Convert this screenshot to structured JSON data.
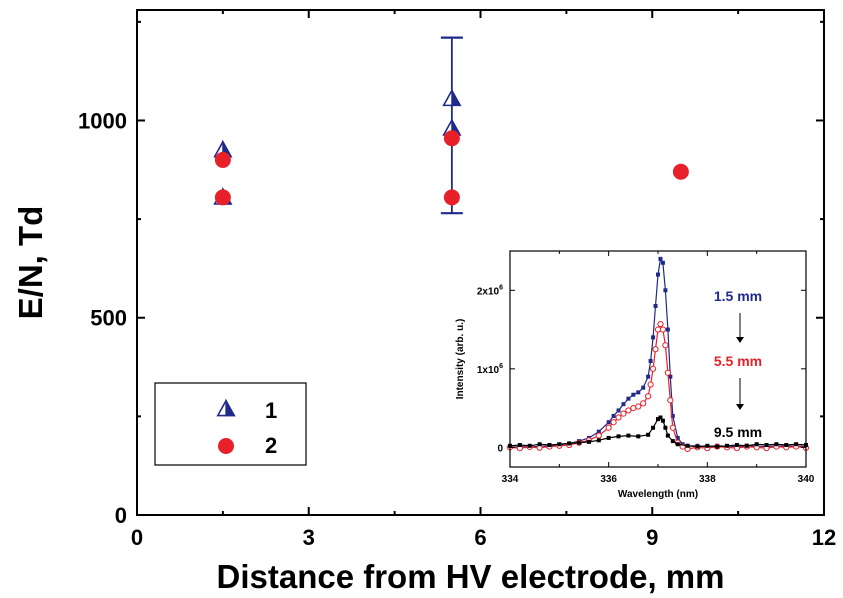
{
  "chart_data": [
    {
      "type": "scatter",
      "title": "",
      "xlabel": "Distance from HV electrode, mm",
      "ylabel": "E/N, Td",
      "xlim": [
        0,
        12
      ],
      "ylim": [
        0,
        1280
      ],
      "xticks": [
        "0",
        "3",
        "6",
        "9",
        "12"
      ],
      "yticks": [
        "0",
        "500",
        "1000"
      ],
      "xtick_values": [
        0,
        3,
        6,
        9,
        12
      ],
      "ytick_values": [
        0,
        500,
        1000
      ],
      "grid": false,
      "legend_position": "bottom-left",
      "series": [
        {
          "name": "1",
          "marker": "half-filled-triangle",
          "color": "#1f2a8a",
          "points": [
            {
              "x": 1.5,
              "y": 925
            },
            {
              "x": 1.5,
              "y": 805
            },
            {
              "x": 5.5,
              "y": 1055
            },
            {
              "x": 5.5,
              "y": 980
            }
          ]
        },
        {
          "name": "2",
          "marker": "filled-circle",
          "color": "#e8202a",
          "points": [
            {
              "x": 1.5,
              "y": 900
            },
            {
              "x": 1.5,
              "y": 805
            },
            {
              "x": 5.5,
              "y": 955
            },
            {
              "x": 5.5,
              "y": 805
            },
            {
              "x": 9.5,
              "y": 870
            }
          ]
        }
      ],
      "error_bars": [
        {
          "x": 5.5,
          "low": 765,
          "high": 1210,
          "color": "#1f2a8a"
        }
      ]
    },
    {
      "type": "line",
      "title": "",
      "xlabel": "Wavelength (nm)",
      "ylabel": "Intensity (arb. u.)",
      "xlim": [
        334,
        340
      ],
      "ylim": [
        -250000,
        2500000
      ],
      "xticks": [
        "334",
        "336",
        "338",
        "340"
      ],
      "xtick_values": [
        334,
        336,
        338,
        340
      ],
      "ytick_values": [
        0,
        1000000,
        2000000
      ],
      "yticks": [
        {
          "base": "0",
          "exp": ""
        },
        {
          "base": "1x10",
          "exp": "6"
        },
        {
          "base": "2x10",
          "exp": "6"
        }
      ],
      "grid": false,
      "series": [
        {
          "name": "1.5 mm",
          "color": "#1f2a8a",
          "marker": "filled-square",
          "x": [
            334.0,
            334.2,
            334.4,
            334.6,
            334.8,
            335.0,
            335.2,
            335.4,
            335.6,
            335.8,
            336.0,
            336.1,
            336.2,
            336.3,
            336.4,
            336.5,
            336.6,
            336.7,
            336.8,
            336.85,
            336.9,
            336.95,
            337.0,
            337.05,
            337.1,
            337.15,
            337.2,
            337.25,
            337.3,
            337.4,
            337.5,
            337.6,
            337.8,
            338.0,
            338.2,
            338.4,
            338.6,
            338.8,
            339.0,
            339.2,
            339.4,
            339.6,
            339.8,
            340.0
          ],
          "y": [
            0,
            10000,
            5000,
            15000,
            20000,
            30000,
            50000,
            80000,
            120000,
            200000,
            320000,
            400000,
            470000,
            550000,
            620000,
            670000,
            700000,
            760000,
            900000,
            1100000,
            1400000,
            1800000,
            2200000,
            2400000,
            2350000,
            2000000,
            1500000,
            900000,
            400000,
            120000,
            40000,
            20000,
            20000,
            10000,
            20000,
            15000,
            10000,
            20000,
            15000,
            10000,
            20000,
            15000,
            20000,
            10000
          ]
        },
        {
          "name": "5.5 mm",
          "color": "#e8202a",
          "marker": "open-circle",
          "x": [
            334.0,
            334.2,
            334.4,
            334.6,
            334.8,
            335.0,
            335.2,
            335.4,
            335.6,
            335.8,
            336.0,
            336.1,
            336.2,
            336.3,
            336.4,
            336.5,
            336.6,
            336.7,
            336.8,
            336.85,
            336.9,
            336.95,
            337.0,
            337.05,
            337.1,
            337.15,
            337.2,
            337.25,
            337.3,
            337.4,
            337.5,
            337.6,
            337.8,
            338.0,
            338.2,
            338.4,
            338.6,
            338.8,
            339.0,
            339.2,
            339.4,
            339.6,
            339.8,
            340.0
          ],
          "y": [
            0,
            -10000,
            5000,
            -5000,
            10000,
            20000,
            30000,
            60000,
            90000,
            150000,
            250000,
            320000,
            380000,
            430000,
            470000,
            500000,
            520000,
            560000,
            650000,
            800000,
            1000000,
            1250000,
            1500000,
            1570000,
            1500000,
            1300000,
            950000,
            600000,
            250000,
            60000,
            10000,
            -20000,
            0,
            -10000,
            10000,
            0,
            -10000,
            10000,
            0,
            -10000,
            10000,
            0,
            10000,
            -5000
          ]
        },
        {
          "name": "9.5 mm",
          "color": "#000000",
          "marker": "filled-square",
          "x": [
            334.0,
            334.2,
            334.4,
            334.6,
            334.8,
            335.0,
            335.2,
            335.4,
            335.6,
            335.8,
            336.0,
            336.2,
            336.4,
            336.6,
            336.8,
            336.9,
            337.0,
            337.05,
            337.1,
            337.15,
            337.2,
            337.3,
            337.4,
            337.6,
            337.8,
            338.0,
            338.2,
            338.4,
            338.6,
            338.8,
            339.0,
            339.2,
            339.4,
            339.6,
            339.8,
            340.0
          ],
          "y": [
            20000,
            30000,
            20000,
            40000,
            30000,
            40000,
            50000,
            60000,
            70000,
            90000,
            120000,
            140000,
            150000,
            140000,
            160000,
            250000,
            360000,
            380000,
            340000,
            250000,
            150000,
            80000,
            40000,
            20000,
            10000,
            20000,
            10000,
            20000,
            30000,
            20000,
            40000,
            30000,
            40000,
            30000,
            40000,
            30000
          ]
        }
      ],
      "annotations": [
        {
          "text": "1.5 mm",
          "color": "#1f2a8a"
        },
        {
          "text": "5.5 mm",
          "color": "#e8202a"
        },
        {
          "text": "9.5 mm",
          "color": "#000000"
        }
      ]
    }
  ]
}
